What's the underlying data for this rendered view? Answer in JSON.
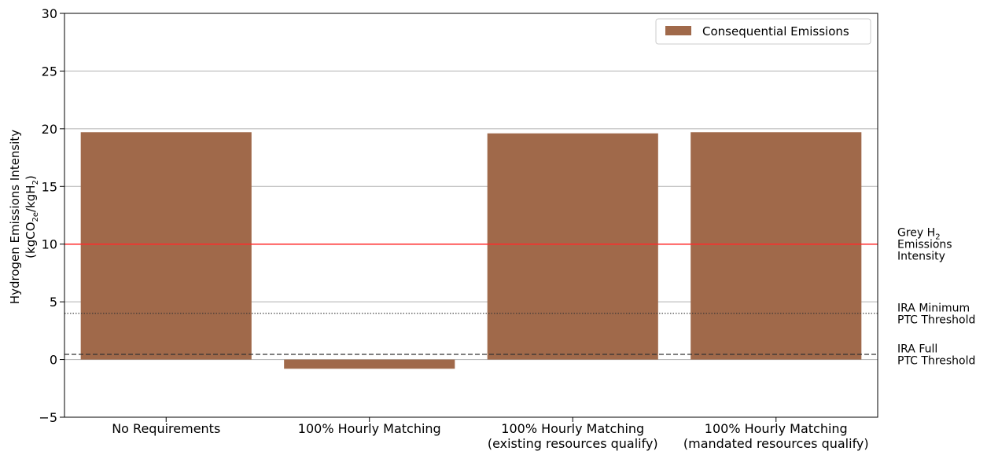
{
  "chart_data": {
    "type": "bar",
    "categories": [
      [
        "No Requirements"
      ],
      [
        "100% Hourly Matching"
      ],
      [
        "100% Hourly Matching",
        "(existing resources qualify)"
      ],
      [
        "100% Hourly Matching",
        "(mandated resources qualify)"
      ]
    ],
    "series": [
      {
        "name": "Consequential Emissions",
        "values": [
          19.7,
          -0.8,
          19.6,
          19.7
        ],
        "color": "#a0694a"
      }
    ],
    "ylabel": "Hydrogen Emissions Intensity",
    "ylabel_units": {
      "base": "(kgCO",
      "sub1": "2e",
      "mid": "/kgH",
      "sub2": "2",
      "end": ")"
    },
    "ylim": [
      -5,
      30
    ],
    "yticks": [
      -5,
      0,
      5,
      10,
      15,
      20,
      25,
      30
    ],
    "grid": "horizontal",
    "legend_position": "top-right",
    "reference_lines": [
      {
        "value": 10,
        "style": "solid",
        "color": "#ff2a2a",
        "label_lines": [
          {
            "base": "Grey H",
            "sub": "2"
          },
          {
            "base": "Emissions"
          },
          {
            "base": "Intensity"
          }
        ]
      },
      {
        "value": 4,
        "style": "dotted",
        "color": "#333333",
        "label_lines": [
          {
            "base": "IRA Minimum"
          },
          {
            "base": "PTC Threshold"
          }
        ]
      },
      {
        "value": 0.45,
        "style": "dashed",
        "color": "#333333",
        "label_lines": [
          {
            "base": "IRA Full"
          },
          {
            "base": "PTC Threshold"
          }
        ]
      }
    ]
  }
}
